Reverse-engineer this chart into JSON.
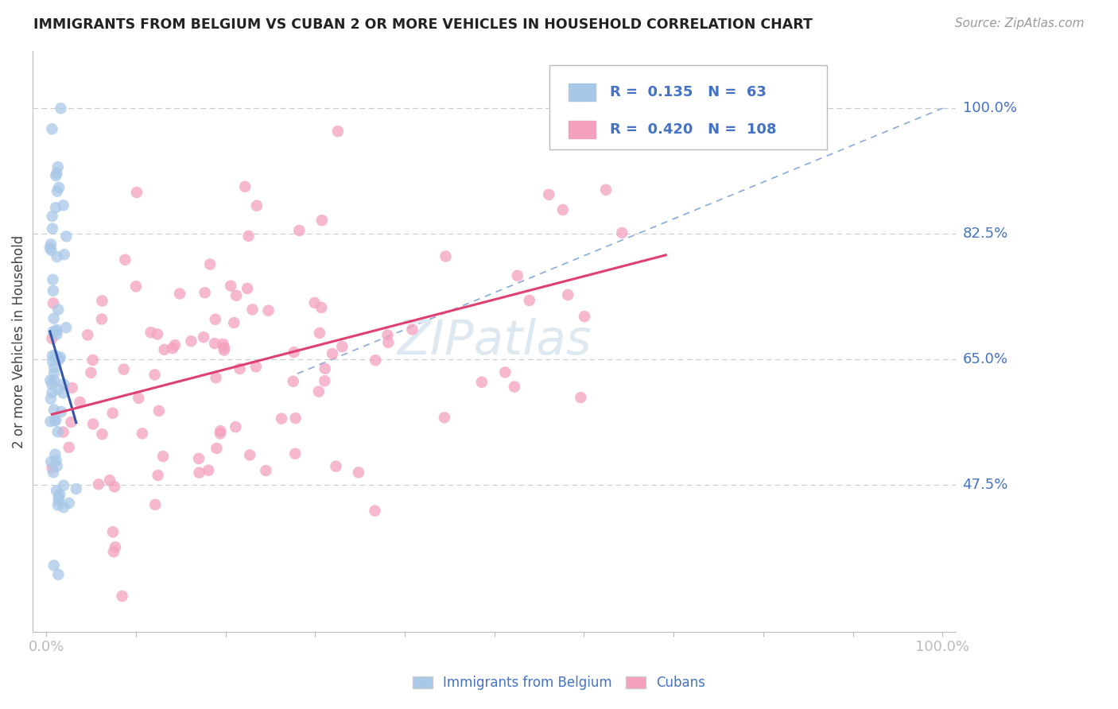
{
  "title": "IMMIGRANTS FROM BELGIUM VS CUBAN 2 OR MORE VEHICLES IN HOUSEHOLD CORRELATION CHART",
  "source": "Source: ZipAtlas.com",
  "ylabel": "2 or more Vehicles in Household",
  "legend1_label": "Immigrants from Belgium",
  "legend2_label": "Cubans",
  "r1": 0.135,
  "n1": 63,
  "r2": 0.42,
  "n2": 108,
  "color1": "#a8c8e8",
  "color2": "#f4a0be",
  "trendline1_color": "#3355aa",
  "trendline2_color": "#e04070",
  "ref_line_color": "#88aadd",
  "title_color": "#222222",
  "right_label_color": "#4472c4",
  "source_color": "#999999",
  "background_color": "#ffffff",
  "grid_color": "#cccccc",
  "watermark_color": "#dde8f0",
  "y_ticks": [
    0.475,
    0.65,
    0.825,
    1.0
  ],
  "y_tick_labels": [
    "47.5%",
    "65.0%",
    "82.5%",
    "100.0%"
  ],
  "x_tick_labels": [
    "0.0%",
    "100.0%"
  ],
  "seed1": 42,
  "seed2": 77
}
